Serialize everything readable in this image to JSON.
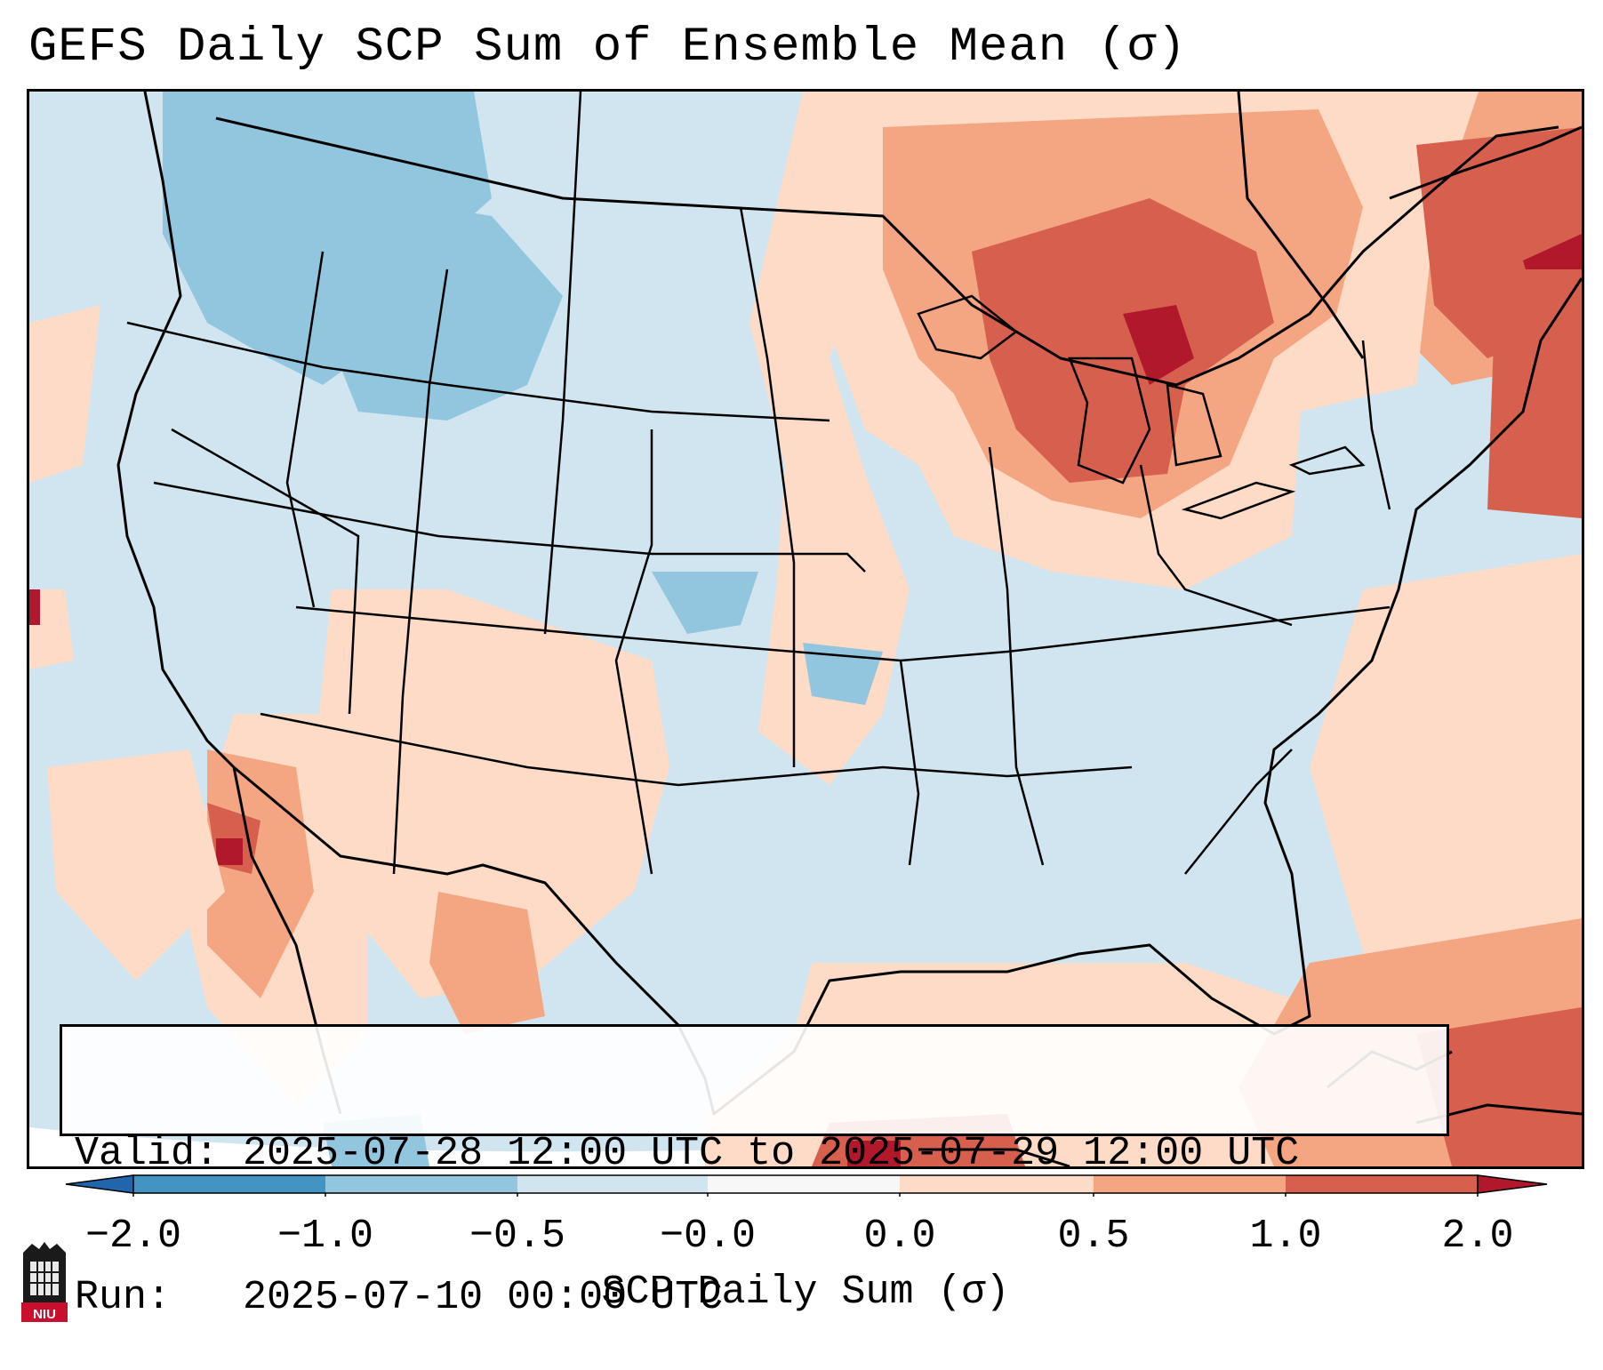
{
  "title": "GEFS Daily SCP Sum of Ensemble Mean (σ)",
  "info": {
    "valid_line": "Valid: 2025-07-28 12:00 UTC to 2025-07-29 12:00 UTC",
    "run_line": "Run:   2025-07-10 00:00 UTC"
  },
  "colorbar": {
    "label": "SCP Daily Sum (σ)",
    "ticks": [
      "−2.0",
      "−1.0",
      "−0.5",
      "−0.0",
      "0.0",
      "0.5",
      "1.0",
      "2.0"
    ],
    "bins": [
      {
        "range": "< -2.0",
        "color": "#2166ac"
      },
      {
        "range": "-2.0 to -1.0",
        "color": "#4393c3"
      },
      {
        "range": "-1.0 to -0.5",
        "color": "#92c5de"
      },
      {
        "range": "-0.5 to -0.0",
        "color": "#d1e5f0"
      },
      {
        "range": "-0.0 to 0.0",
        "color": "#f7f7f7"
      },
      {
        "range": "0.0 to 0.5",
        "color": "#fddbc7"
      },
      {
        "range": "0.5 to 1.0",
        "color": "#f4a582"
      },
      {
        "range": "1.0 to 2.0",
        "color": "#d6604d"
      },
      {
        "range": "> 2.0",
        "color": "#b2182b"
      }
    ]
  },
  "logo": {
    "text": "NIU"
  },
  "colors": {
    "strong_negative": "#92c5de",
    "weak_negative": "#d1e5f0",
    "weak_positive": "#fddbc7",
    "moderate_positive": "#f4a582",
    "strong_positive": "#d6604d",
    "extreme_positive": "#b2182b"
  }
}
